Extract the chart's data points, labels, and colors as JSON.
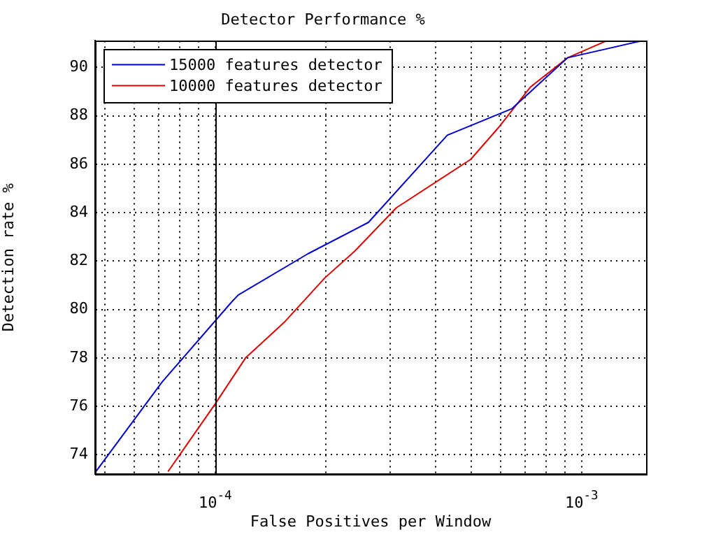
{
  "chart_data": {
    "type": "line",
    "title": "Detector Performance %",
    "xlabel": "False Positives per Window",
    "ylabel": "Detection rate %",
    "log": "x",
    "xlim": [
      4.7e-05,
      0.0015
    ],
    "xticks": [
      {
        "value": 5e-05,
        "label": null
      },
      {
        "value": 6e-05,
        "label": null
      },
      {
        "value": 7e-05,
        "label": null
      },
      {
        "value": 8e-05,
        "label": null
      },
      {
        "value": 9e-05,
        "label": null
      },
      {
        "value": 0.0001,
        "label": "10$^{-4}$"
      },
      {
        "value": 0.0002,
        "label": null
      },
      {
        "value": 0.0003,
        "label": null
      },
      {
        "value": 0.0004,
        "label": null
      },
      {
        "value": 0.0005,
        "label": null
      },
      {
        "value": 0.0006,
        "label": null
      },
      {
        "value": 0.0007,
        "label": null
      },
      {
        "value": 0.0008,
        "label": null
      },
      {
        "value": 0.0009,
        "label": null
      },
      {
        "value": 0.001,
        "label": "10$^{-3}$"
      }
    ],
    "ylim": [
      73.2,
      91.1
    ],
    "yticks": [
      74,
      76,
      78,
      80,
      82,
      84,
      86,
      88,
      90
    ],
    "grid": true,
    "legend": "top left",
    "marker": "none",
    "line_style": "solid",
    "ref_lines": [
      {
        "axis": "x",
        "value": 0.0001,
        "color": "#000000"
      }
    ],
    "series": [
      {
        "name": "15000 features detector",
        "color": "#0000cc",
        "x": [
          4.72e-05,
          7.16e-05,
          0.0001107,
          0.0001156,
          0.000179,
          0.000262,
          0.00043,
          0.000646,
          0.000916,
          0.00146
        ],
        "values": [
          73.3,
          77.0,
          80.3,
          80.6,
          82.3,
          83.6,
          87.2,
          88.3,
          90.4,
          91.1
        ]
      },
      {
        "name": "10000 features detector",
        "color": "#dd0000",
        "x": [
          7.43e-05,
          0.0001,
          0.000121,
          0.000155,
          0.000199,
          0.00024,
          0.000312,
          0.000498,
          0.000592,
          0.000726,
          0.000916,
          0.00117
        ],
        "values": [
          73.3,
          76.1,
          78.0,
          79.5,
          81.3,
          82.4,
          84.2,
          86.2,
          87.5,
          89.2,
          90.4,
          91.1
        ]
      }
    ]
  }
}
